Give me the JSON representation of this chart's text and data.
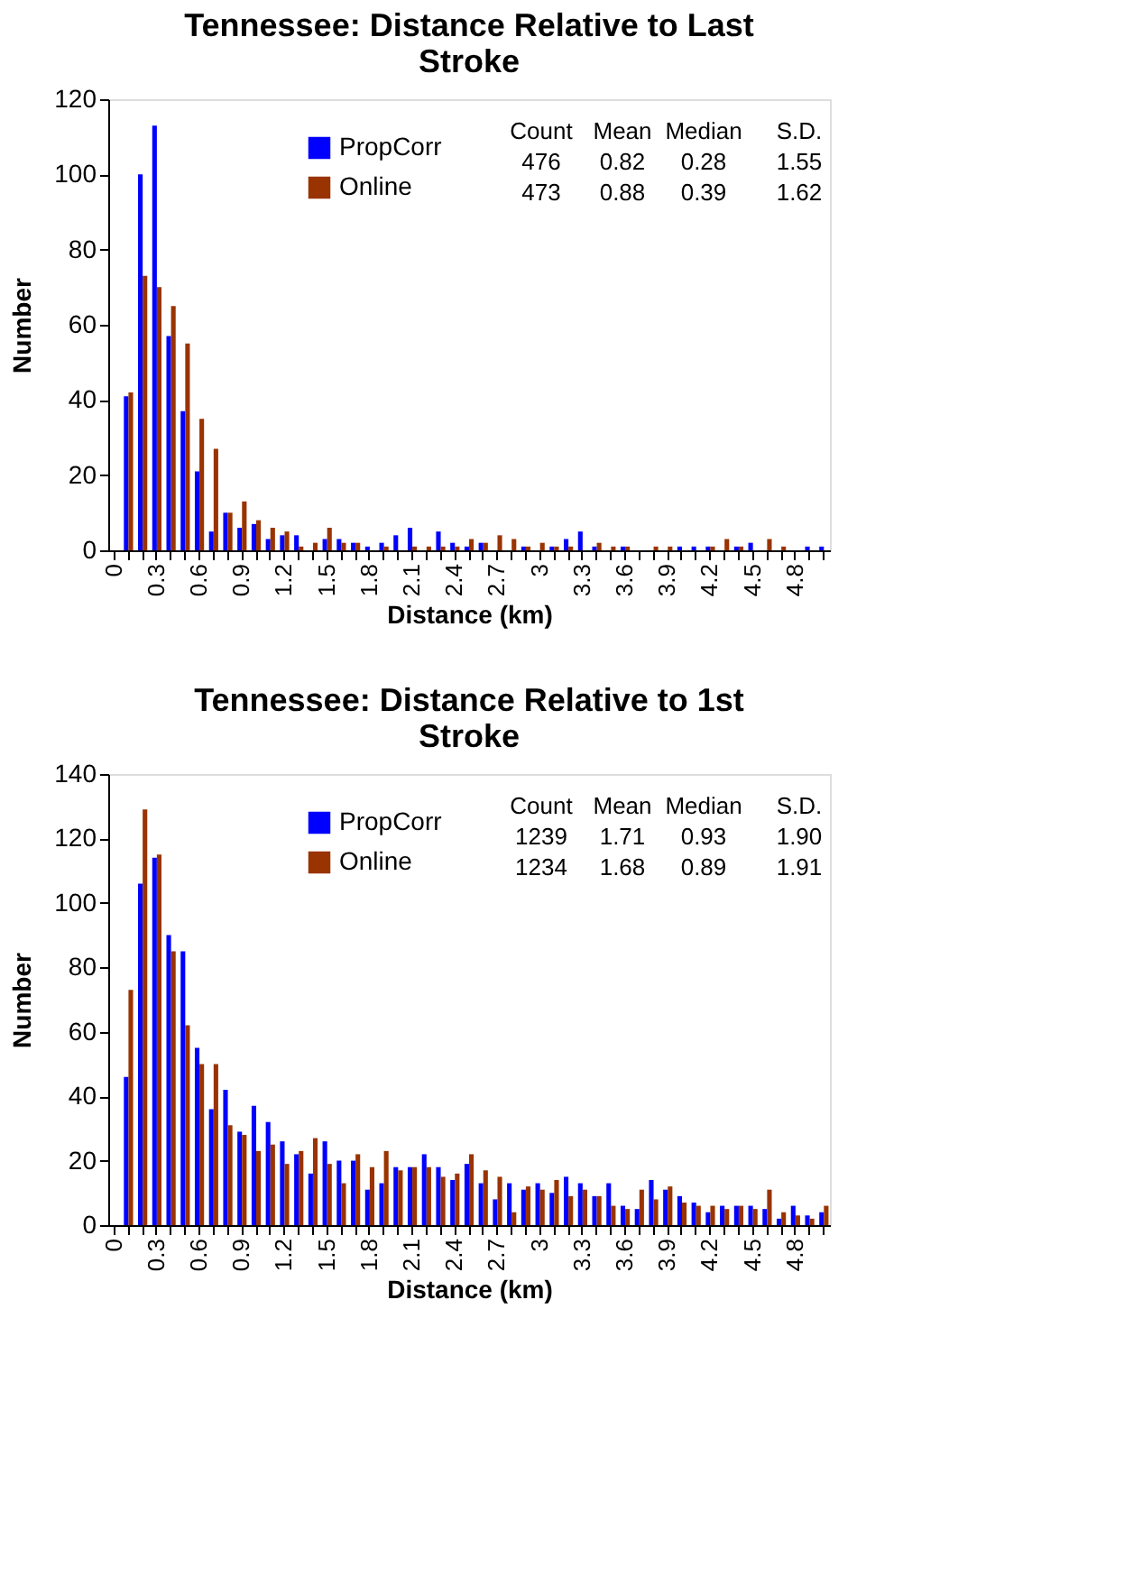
{
  "chart_data": [
    {
      "type": "bar",
      "title": "Tennessee: Distance Relative to Last Stroke",
      "xlabel": "Distance (km)",
      "ylabel": "Number",
      "legend": "top",
      "categories": [
        "0",
        null,
        null,
        "0.3",
        null,
        null,
        "0.6",
        null,
        null,
        "0.9",
        null,
        null,
        "1.2",
        null,
        null,
        "1.5",
        null,
        null,
        "1.8",
        null,
        null,
        "2.1",
        null,
        null,
        "2.4",
        null,
        null,
        "2.7",
        null,
        null,
        "3",
        null,
        null,
        "3.3",
        null,
        null,
        "3.6",
        null,
        null,
        "3.9",
        null,
        null,
        "4.2",
        null,
        null,
        "4.5",
        null,
        null,
        "4.8",
        null,
        null
      ],
      "series": [
        {
          "name": "PropCorr",
          "color": "#0000ff",
          "values": [
            0,
            41,
            100,
            113,
            57,
            37,
            21,
            5,
            10,
            6,
            7,
            3,
            4,
            4,
            0,
            3,
            3,
            2,
            1,
            2,
            4,
            6,
            0,
            5,
            2,
            1,
            2,
            0,
            0,
            1,
            0,
            1,
            3,
            5,
            1,
            0,
            1,
            0,
            0,
            0,
            1,
            1,
            1,
            0,
            1,
            2,
            0,
            0,
            0,
            1,
            1
          ]
        },
        {
          "name": "Online",
          "color": "#993300",
          "values": [
            0,
            42,
            73,
            70,
            65,
            55,
            35,
            27,
            10,
            13,
            8,
            6,
            5,
            1,
            2,
            6,
            2,
            2,
            0,
            1,
            0,
            1,
            1,
            1,
            1,
            3,
            2,
            4,
            3,
            1,
            2,
            1,
            1,
            0,
            2,
            1,
            1,
            0,
            1,
            1,
            0,
            0,
            1,
            3,
            1,
            0,
            3,
            1,
            0,
            0,
            0
          ]
        }
      ],
      "ylim": [
        0,
        120
      ],
      "yticks": [
        0,
        20,
        40,
        60,
        80,
        100,
        120
      ],
      "annotations": [
        "Count",
        "Mean",
        "Median",
        "S.D.",
        "476",
        "0.82",
        "0.28",
        "1.55",
        "473",
        "0.88",
        "0.39",
        "1.62"
      ]
    },
    {
      "type": "bar",
      "title": "Tennessee: Distance Relative to 1st Stroke",
      "xlabel": "Distance (km)",
      "ylabel": "Number",
      "legend": "top",
      "categories": [
        "0",
        null,
        null,
        "0.3",
        null,
        null,
        "0.6",
        null,
        null,
        "0.9",
        null,
        null,
        "1.2",
        null,
        null,
        "1.5",
        null,
        null,
        "1.8",
        null,
        null,
        "2.1",
        null,
        null,
        "2.4",
        null,
        null,
        "2.7",
        null,
        null,
        "3",
        null,
        null,
        "3.3",
        null,
        null,
        "3.6",
        null,
        null,
        "3.9",
        null,
        null,
        "4.2",
        null,
        null,
        "4.5",
        null,
        null,
        "4.8",
        null,
        null
      ],
      "series": [
        {
          "name": "PropCorr",
          "color": "#0000ff",
          "values": [
            0,
            46,
            106,
            114,
            90,
            85,
            55,
            36,
            42,
            29,
            37,
            32,
            26,
            22,
            16,
            26,
            20,
            20,
            11,
            13,
            18,
            18,
            22,
            18,
            14,
            19,
            13,
            8,
            13,
            11,
            13,
            10,
            15,
            13,
            9,
            13,
            6,
            5,
            14,
            11,
            9,
            7,
            4,
            6,
            6,
            6,
            5,
            2,
            6,
            3,
            4
          ]
        },
        {
          "name": "Online",
          "color": "#993300",
          "values": [
            0,
            73,
            129,
            115,
            85,
            62,
            50,
            50,
            31,
            28,
            23,
            25,
            19,
            23,
            27,
            19,
            13,
            22,
            18,
            23,
            17,
            18,
            18,
            15,
            16,
            22,
            17,
            15,
            4,
            12,
            11,
            14,
            9,
            11,
            9,
            6,
            5,
            11,
            8,
            12,
            7,
            6,
            6,
            5,
            6,
            5,
            11,
            4,
            3,
            2,
            6
          ]
        }
      ],
      "ylim": [
        0,
        140
      ],
      "yticks": [
        0,
        20,
        40,
        60,
        80,
        100,
        120,
        140
      ],
      "annotations": [
        "Count",
        "Mean",
        "Median",
        "S.D.",
        "1239",
        "1.71",
        "0.93",
        "1.90",
        "1234",
        "1.68",
        "0.89",
        "1.91"
      ]
    }
  ]
}
